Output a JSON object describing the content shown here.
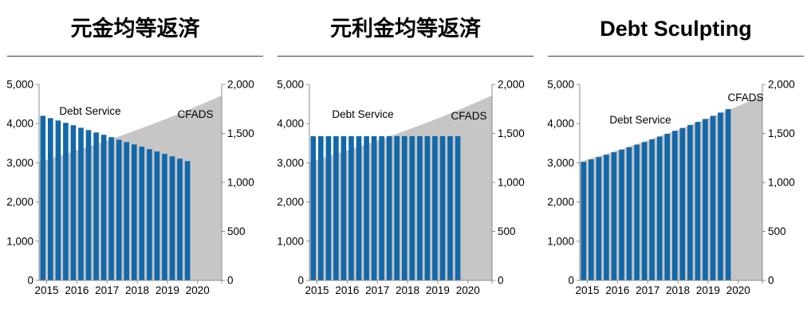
{
  "colors": {
    "bar_blue": "#1268A9",
    "area_gray": "#C6C6C6",
    "axis_line_gray": "#8C8C8C",
    "text_black": "#000000",
    "title_rule": "#404040"
  },
  "chart_data": [
    {
      "type": "combo-bar-area",
      "title": "元金均等返済",
      "x_tick_labels": [
        "2015",
        "2016",
        "2017",
        "2018",
        "2019",
        "2020"
      ],
      "left_axis": {
        "min": 0,
        "max": 5000,
        "step": 1000,
        "tick_labels_top_to_bottom": [
          "5,000",
          "4,000",
          "3,000",
          "2,000",
          "1,000",
          "0"
        ]
      },
      "right_axis": {
        "min": 0,
        "max": 2000,
        "step": 500,
        "tick_labels_top_to_bottom": [
          "2,000",
          "1,500",
          "1,000",
          "500",
          "0"
        ]
      },
      "series": [
        {
          "name": "Debt Service",
          "type": "bar",
          "axis": "left",
          "values": [
            4200,
            4140,
            4080,
            4020,
            3960,
            3895,
            3835,
            3775,
            3715,
            3655,
            3590,
            3530,
            3470,
            3410,
            3350,
            3290,
            3230,
            3165,
            3105,
            3045
          ]
        },
        {
          "name": "CFADS",
          "type": "area",
          "axis": "right",
          "values": [
            1210,
            1234,
            1258,
            1282,
            1307,
            1333,
            1359,
            1385,
            1412,
            1440,
            1468,
            1496,
            1526,
            1555,
            1586,
            1617,
            1648,
            1680,
            1713,
            1747,
            1781,
            1816,
            1851,
            1887
          ]
        }
      ]
    },
    {
      "type": "combo-bar-area",
      "title": "元利金均等返済",
      "x_tick_labels": [
        "2015",
        "2016",
        "2017",
        "2018",
        "2019",
        "2020"
      ],
      "left_axis": {
        "min": 0,
        "max": 5000,
        "step": 1000,
        "tick_labels_top_to_bottom": [
          "5,000",
          "4,000",
          "3,000",
          "2,000",
          "1,000",
          "0"
        ]
      },
      "right_axis": {
        "min": 0,
        "max": 2000,
        "step": 500,
        "tick_labels_top_to_bottom": [
          "2,000",
          "1,500",
          "1,000",
          "500",
          "0"
        ]
      },
      "series": [
        {
          "name": "Debt Service",
          "type": "bar",
          "axis": "left",
          "values": [
            3680,
            3680,
            3680,
            3680,
            3680,
            3680,
            3680,
            3680,
            3680,
            3680,
            3680,
            3680,
            3680,
            3680,
            3680,
            3680,
            3680,
            3680,
            3680,
            3680
          ]
        },
        {
          "name": "CFADS",
          "type": "area",
          "axis": "right",
          "values": [
            1210,
            1234,
            1258,
            1282,
            1307,
            1333,
            1359,
            1385,
            1412,
            1440,
            1468,
            1496,
            1526,
            1555,
            1586,
            1617,
            1648,
            1680,
            1713,
            1747,
            1781,
            1816,
            1851,
            1887
          ]
        }
      ]
    },
    {
      "type": "combo-bar-area",
      "title": "Debt Sculpting",
      "x_tick_labels": [
        "2015",
        "2016",
        "2017",
        "2018",
        "2019",
        "2020"
      ],
      "left_axis": {
        "min": 0,
        "max": 5000,
        "step": 1000,
        "tick_labels_top_to_bottom": [
          "5,000",
          "4,000",
          "3,000",
          "2,000",
          "1,000",
          "0"
        ]
      },
      "right_axis": {
        "min": 0,
        "max": 2000,
        "step": 500,
        "tick_labels_top_to_bottom": [
          "2,000",
          "1,500",
          "1,000",
          "500",
          "0"
        ]
      },
      "series": [
        {
          "name": "Debt Service",
          "type": "bar",
          "axis": "left",
          "values": [
            3025,
            3085,
            3145,
            3205,
            3268,
            3333,
            3398,
            3463,
            3530,
            3600,
            3670,
            3740,
            3815,
            3888,
            3965,
            4043,
            4120,
            4200,
            4283,
            4368
          ]
        },
        {
          "name": "CFADS",
          "type": "area",
          "axis": "right",
          "values": [
            1210,
            1234,
            1258,
            1282,
            1307,
            1333,
            1359,
            1385,
            1412,
            1440,
            1468,
            1496,
            1526,
            1555,
            1586,
            1617,
            1648,
            1680,
            1713,
            1747,
            1781,
            1816,
            1851,
            1887
          ]
        }
      ]
    }
  ]
}
